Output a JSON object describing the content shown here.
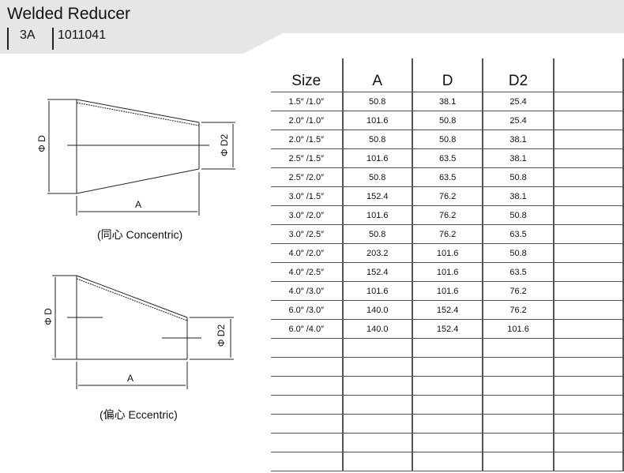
{
  "header": {
    "title": "Welded Reducer",
    "standard": "3A",
    "code": "1011041"
  },
  "table": {
    "columns": [
      "Size",
      "A",
      "D",
      "D2",
      ""
    ],
    "rows": [
      [
        "1.5″  /1.0″",
        "50.8",
        "38.1",
        "25.4",
        ""
      ],
      [
        "2.0″  /1.0″",
        "101.6",
        "50.8",
        "25.4",
        ""
      ],
      [
        "2.0″  /1.5″",
        "50.8",
        "50.8",
        "38.1",
        ""
      ],
      [
        "2.5″  /1.5″",
        "101.6",
        "63.5",
        "38.1",
        ""
      ],
      [
        "2.5″  /2.0″",
        "50.8",
        "63.5",
        "50.8",
        ""
      ],
      [
        "3.0″  /1.5″",
        "152.4",
        "76.2",
        "38.1",
        ""
      ],
      [
        "3.0″  /2.0″",
        "101.6",
        "76.2",
        "50.8",
        ""
      ],
      [
        "3.0″  /2.5″",
        "50.8",
        "76.2",
        "63.5",
        ""
      ],
      [
        "4.0″  /2.0″",
        "203.2",
        "101.6",
        "50.8",
        ""
      ],
      [
        "4.0″  /2.5″",
        "152.4",
        "101.6",
        "63.5",
        ""
      ],
      [
        "4.0″  /3.0″",
        "101.6",
        "101.6",
        "76.2",
        ""
      ],
      [
        "6.0″  /3.0″",
        "140.0",
        "152.4",
        "76.2",
        ""
      ],
      [
        "6.0″  /4.0″",
        "140.0",
        "152.4",
        "101.6",
        ""
      ],
      [
        "",
        "",
        "",
        "",
        ""
      ],
      [
        "",
        "",
        "",
        "",
        ""
      ],
      [
        "",
        "",
        "",
        "",
        ""
      ],
      [
        "",
        "",
        "",
        "",
        ""
      ],
      [
        "",
        "",
        "",
        "",
        ""
      ],
      [
        "",
        "",
        "",
        "",
        ""
      ],
      [
        "",
        "",
        "",
        "",
        ""
      ]
    ]
  },
  "drawings": {
    "concentric": {
      "label_d": "Φ D",
      "label_d2": "Φ D2",
      "label_a": "A",
      "caption": "(同心 Concentric)"
    },
    "eccentric": {
      "label_d": "Φ D",
      "label_d2": "Φ D2",
      "label_a": "A",
      "caption": "(偏心 Eccentric)"
    }
  }
}
